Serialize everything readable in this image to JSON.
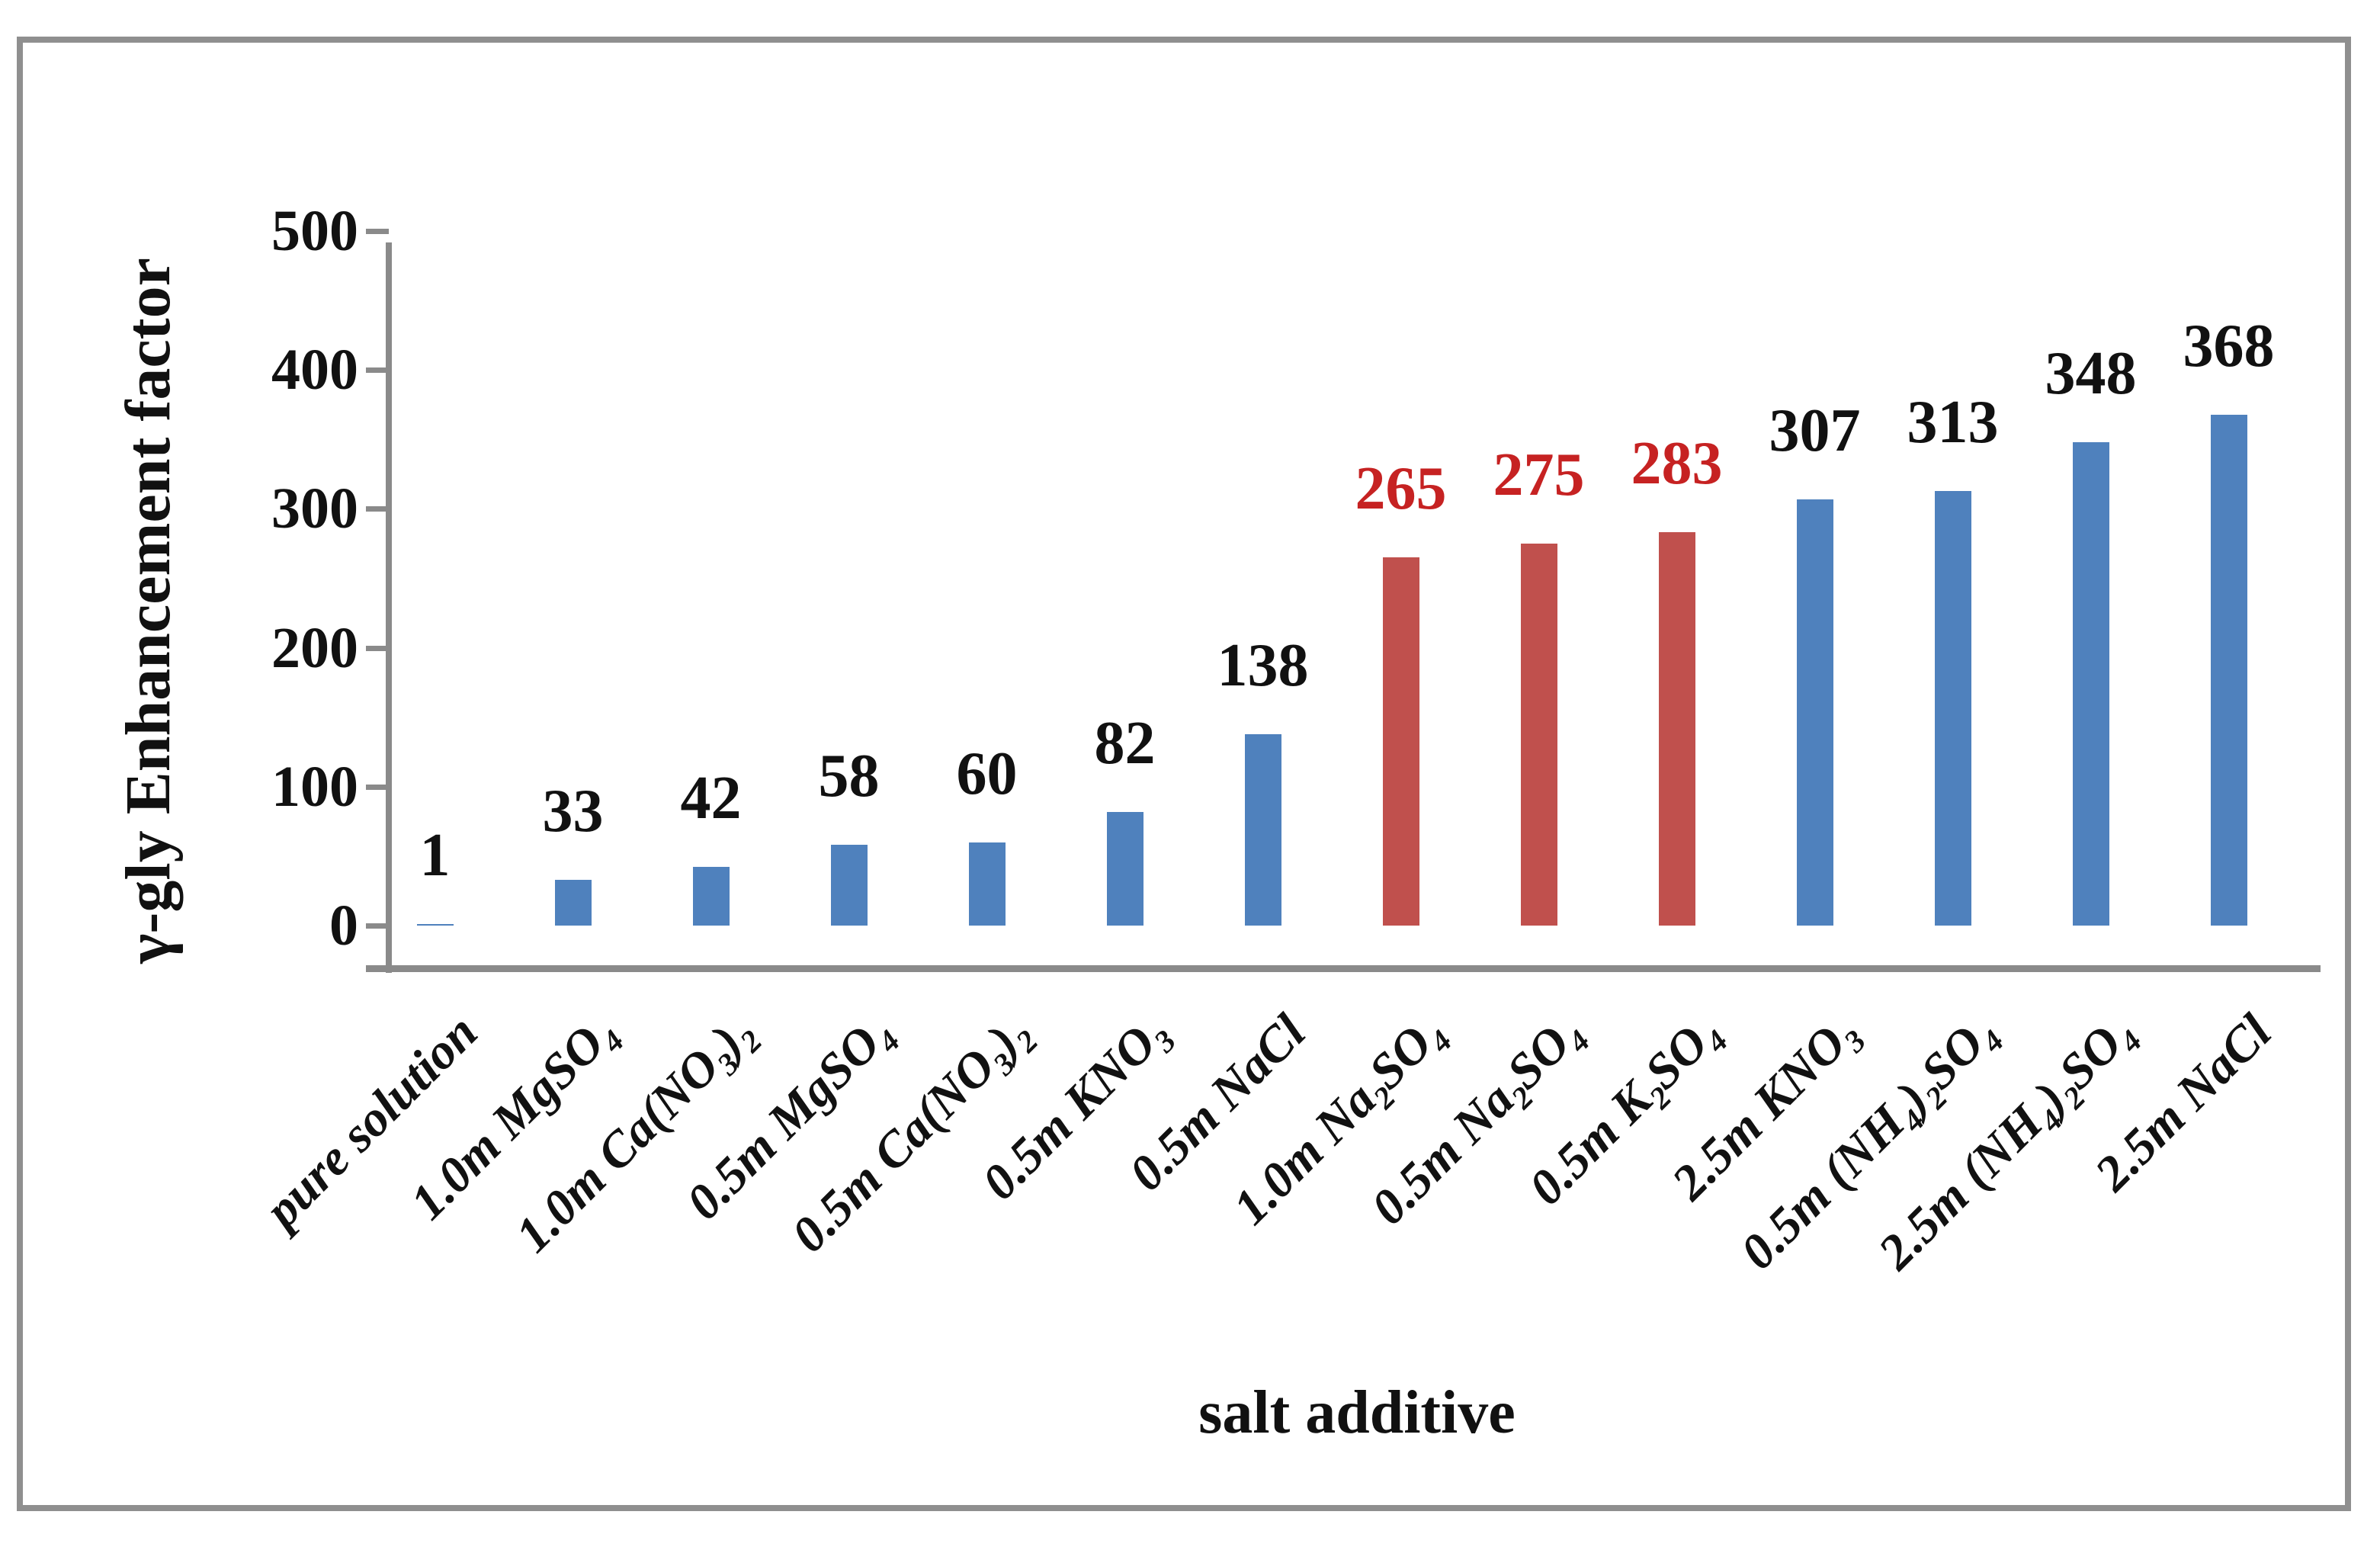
{
  "figure": {
    "background": "#ffffff",
    "border_color": "#8f8f8f"
  },
  "chart_data": {
    "type": "bar",
    "title": "",
    "xlabel": "salt additive",
    "ylabel": "γ-gly Enhancement factor",
    "categories": [
      "pure solution",
      "1.0m MgSO₄",
      "1.0m Ca(NO₃)₂",
      "0.5m MgSO₄",
      "0.5m Ca(NO₃)₂",
      "0.5m KNO₃",
      "0.5m NaCl",
      "1.0m Na₂SO₄",
      "0.5m Na₂SO₄",
      "0.5m K₂SO₄",
      "2.5m KNO₃",
      "0.5m (NH₄)₂SO₄",
      "2.5m (NH₄)₂SO₄",
      "2.5m NaCl"
    ],
    "values": [
      1,
      33,
      42,
      58,
      60,
      82,
      138,
      265,
      275,
      283,
      307,
      313,
      348,
      368
    ],
    "highlight_indices": [
      7,
      8,
      9
    ],
    "bar_color": "#4F81BD",
    "bar_color_highlight": "#C0504D",
    "value_label_color": "#111111",
    "value_label_color_highlight": "#C62222",
    "axis_color": "#8a8a8a",
    "text_color": "#111111",
    "yticks": [
      0,
      100,
      200,
      300,
      400,
      500
    ],
    "ylim": [
      0,
      522
    ],
    "grid": false,
    "legend": null,
    "value_labels_shown": true,
    "x_tick_rotation_deg": 45
  }
}
